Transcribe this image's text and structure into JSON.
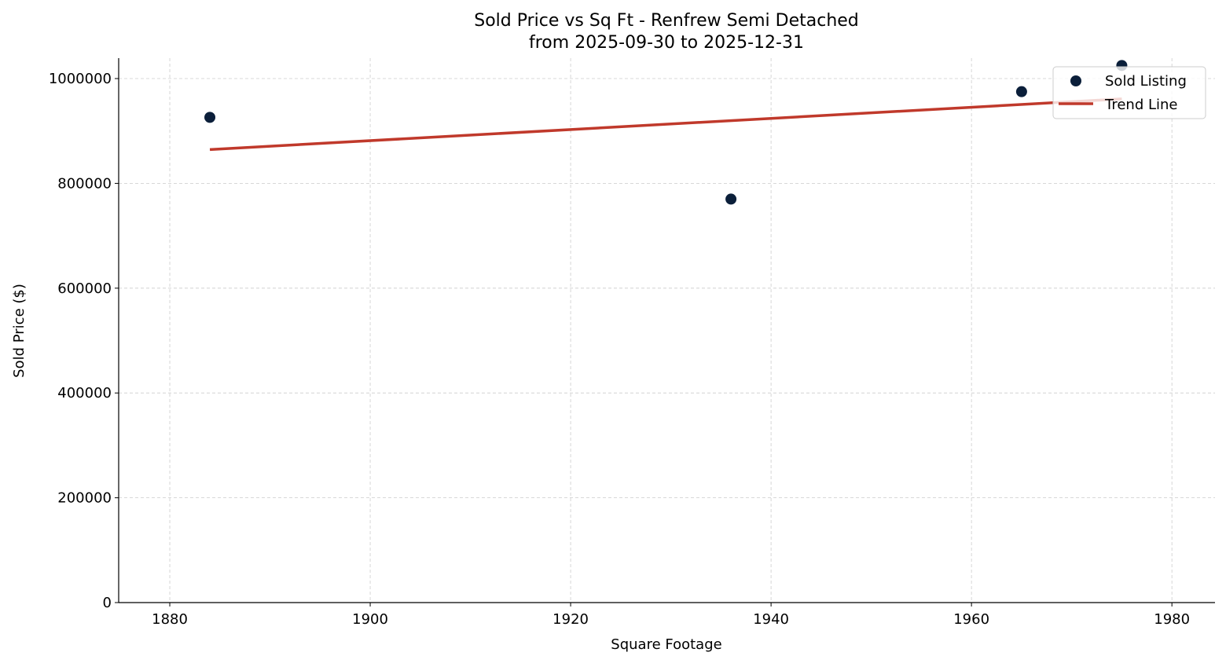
{
  "chart_data": {
    "type": "scatter",
    "title": "Sold Price vs Sq Ft - Renfrew Semi Detached",
    "subtitle": "from 2025-09-30 to 2025-12-31",
    "xlabel": "Square Footage",
    "ylabel": "Sold Price ($)",
    "xlim": [
      1874.9,
      1984.3
    ],
    "ylim": [
      0,
      1039000
    ],
    "xticks": [
      1880,
      1900,
      1920,
      1940,
      1960,
      1980
    ],
    "yticks": [
      0,
      200000,
      400000,
      600000,
      800000,
      1000000
    ],
    "grid": true,
    "legend_position": "top-right",
    "series": [
      {
        "name": "Sold Listing",
        "type": "scatter",
        "color": "#0b1f3a",
        "points": [
          {
            "x": 1884,
            "y": 926000
          },
          {
            "x": 1936,
            "y": 770000
          },
          {
            "x": 1965,
            "y": 975000
          },
          {
            "x": 1975,
            "y": 1025000
          }
        ]
      },
      {
        "name": "Trend Line",
        "type": "line",
        "color": "#c0392b",
        "points": [
          {
            "x": 1884,
            "y": 864500
          },
          {
            "x": 1975,
            "y": 961200
          }
        ]
      }
    ]
  }
}
